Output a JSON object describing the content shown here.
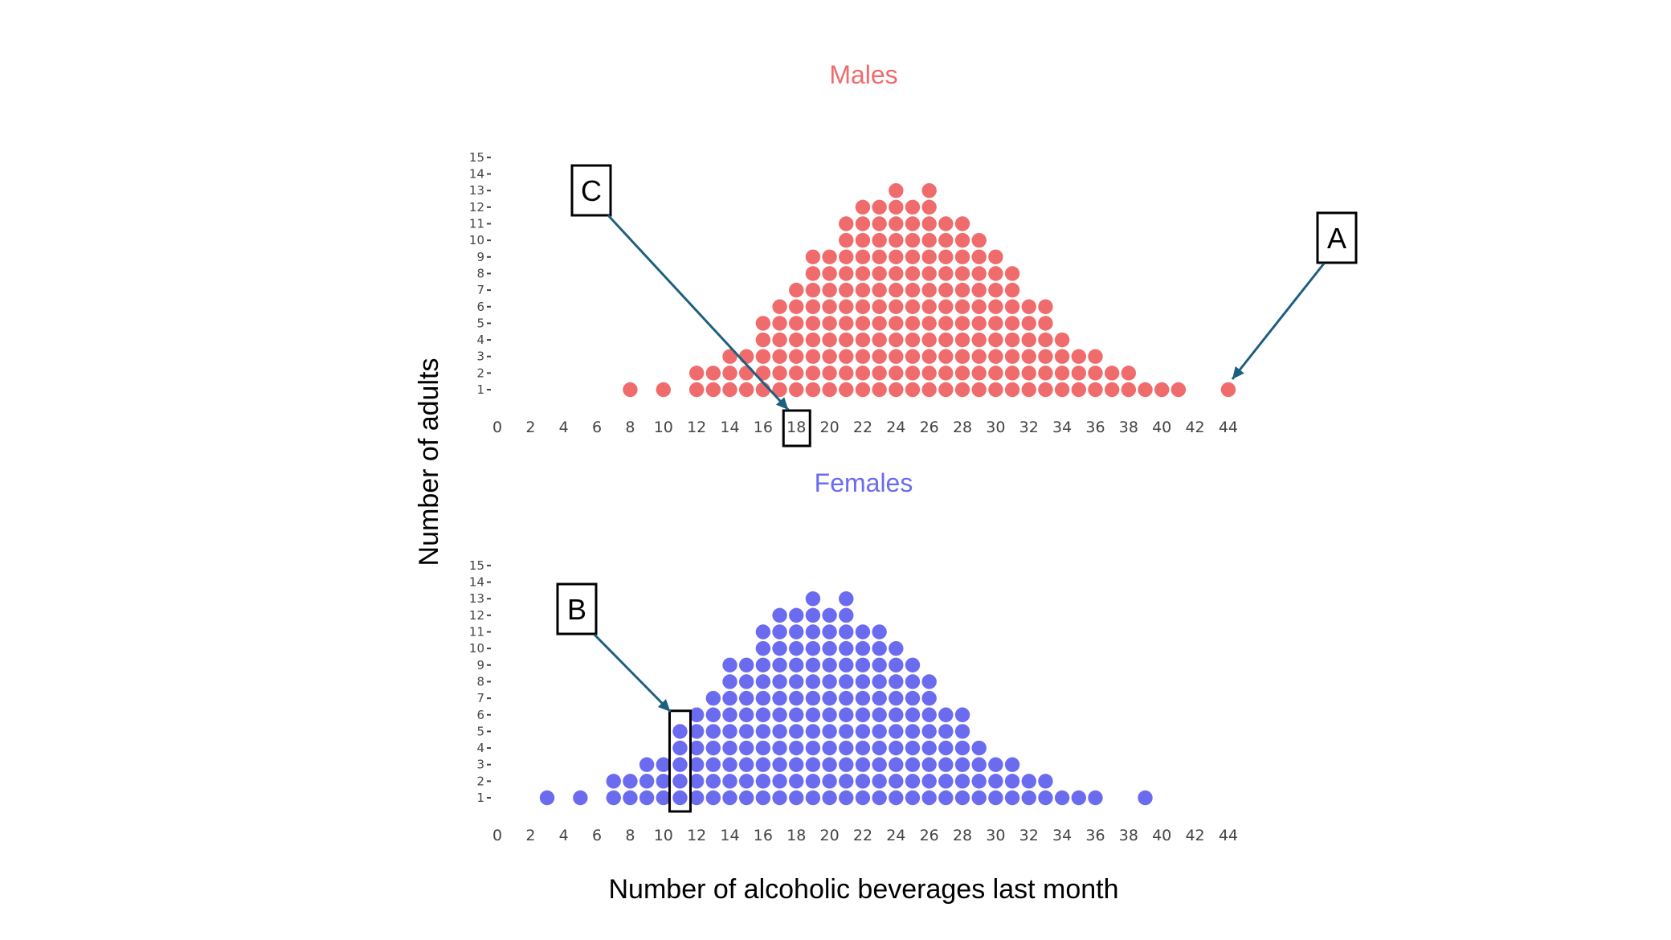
{
  "chart_data": {
    "type": "dotplot",
    "xlabel": "Number of alcoholic beverages last month",
    "ylabel": "Number of adults",
    "x_ticks": [
      0,
      2,
      4,
      6,
      8,
      10,
      12,
      14,
      16,
      18,
      20,
      22,
      24,
      26,
      28,
      30,
      32,
      34,
      36,
      38,
      40,
      42,
      44
    ],
    "y_ticks": [
      1,
      2,
      3,
      4,
      5,
      6,
      7,
      8,
      9,
      10,
      11,
      12,
      13,
      14,
      15
    ],
    "xlim": [
      0,
      44
    ],
    "ylim": [
      1,
      15
    ],
    "panels": [
      {
        "title": "Males",
        "color": "#f06b6b",
        "x": [
          8,
          10,
          12,
          13,
          14,
          15,
          16,
          17,
          18,
          19,
          20,
          21,
          22,
          23,
          24,
          25,
          26,
          27,
          28,
          29,
          30,
          31,
          32,
          33,
          34,
          35,
          36,
          37,
          38,
          39,
          40,
          41,
          44
        ],
        "counts": [
          1,
          1,
          2,
          2,
          3,
          3,
          5,
          6,
          7,
          9,
          9,
          11,
          12,
          12,
          13,
          12,
          13,
          11,
          11,
          10,
          9,
          8,
          6,
          6,
          4,
          3,
          3,
          2,
          2,
          1,
          1,
          1,
          1
        ]
      },
      {
        "title": "Females",
        "color": "#6b6bf0",
        "x": [
          3,
          5,
          7,
          8,
          9,
          10,
          11,
          12,
          13,
          14,
          15,
          16,
          17,
          18,
          19,
          20,
          21,
          22,
          23,
          24,
          25,
          26,
          27,
          28,
          29,
          30,
          31,
          32,
          33,
          34,
          35,
          36,
          39
        ],
        "counts": [
          1,
          1,
          2,
          2,
          3,
          3,
          5,
          6,
          7,
          9,
          9,
          11,
          12,
          12,
          13,
          12,
          13,
          11,
          11,
          10,
          9,
          8,
          6,
          6,
          4,
          3,
          3,
          2,
          2,
          1,
          1,
          1,
          1
        ]
      }
    ],
    "annotations": [
      {
        "label": "A",
        "panel": "Males",
        "x": 44,
        "count": 1
      },
      {
        "label": "B",
        "panel": "Females",
        "x": 11,
        "count": 5
      },
      {
        "label": "C",
        "panel": "Males",
        "x": 18
      }
    ],
    "arrow_color": "#1d5f80"
  }
}
